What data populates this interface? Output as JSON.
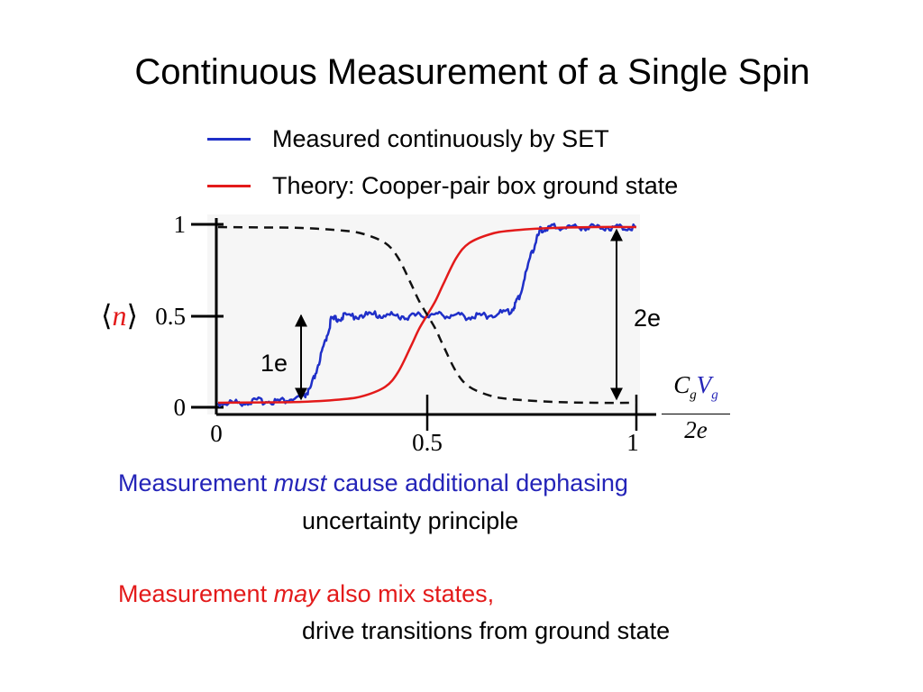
{
  "title": "Continuous Measurement of a Single Spin",
  "colors": {
    "blue": "#1f2fc8",
    "red": "#e31a1a",
    "dashed": "#111111",
    "plot_bg": "#f6f6f6",
    "text_blue": "#2424b8",
    "text_red": "#e31a1a"
  },
  "chart_data": {
    "type": "line",
    "title": "",
    "xlabel_num": "C",
    "xlabel_num_sub": "g",
    "xlabel_num2": "V",
    "xlabel_num2_sub": "g",
    "xlabel_den": "2e",
    "ylabel_left": "⟨",
    "ylabel_var": "n",
    "ylabel_right": "⟩",
    "xlim": [
      0,
      1
    ],
    "ylim": [
      0,
      1
    ],
    "xticks": [
      {
        "value": 0,
        "label": "0"
      },
      {
        "value": 0.5,
        "label": "0.5"
      },
      {
        "value": 1,
        "label": "1"
      }
    ],
    "yticks": [
      {
        "value": 0,
        "label": "0"
      },
      {
        "value": 0.5,
        "label": "0.5"
      },
      {
        "value": 1,
        "label": "1"
      }
    ],
    "grid": false,
    "legend_position": "top",
    "series": [
      {
        "name": "Measured continuously by SET",
        "color": "#1f2fc8",
        "style": "solid-noisy",
        "x": [
          0,
          0.05,
          0.1,
          0.15,
          0.2,
          0.22,
          0.25,
          0.27,
          0.3,
          0.35,
          0.4,
          0.45,
          0.5,
          0.55,
          0.6,
          0.65,
          0.7,
          0.72,
          0.75,
          0.77,
          0.8,
          0.85,
          0.9,
          0.95,
          1
        ],
        "y": [
          0.01,
          0.01,
          0.02,
          0.02,
          0.04,
          0.08,
          0.3,
          0.47,
          0.49,
          0.5,
          0.5,
          0.49,
          0.5,
          0.5,
          0.49,
          0.5,
          0.52,
          0.6,
          0.85,
          0.97,
          0.99,
          0.99,
          0.99,
          0.99,
          0.99
        ]
      },
      {
        "name": "Theory: Cooper-pair box ground state",
        "color": "#e31a1a",
        "style": "solid",
        "x": [
          0,
          0.1,
          0.2,
          0.3,
          0.35,
          0.4,
          0.43,
          0.46,
          0.48,
          0.5,
          0.52,
          0.54,
          0.57,
          0.6,
          0.65,
          0.7,
          0.8,
          0.9,
          1
        ],
        "y": [
          0.01,
          0.012,
          0.015,
          0.03,
          0.05,
          0.1,
          0.18,
          0.32,
          0.42,
          0.5,
          0.58,
          0.68,
          0.82,
          0.9,
          0.95,
          0.97,
          0.985,
          0.99,
          0.99
        ]
      },
      {
        "name": "",
        "color": "#111111",
        "style": "dashed",
        "x": [
          0,
          0.1,
          0.2,
          0.3,
          0.35,
          0.4,
          0.43,
          0.46,
          0.48,
          0.5,
          0.52,
          0.54,
          0.57,
          0.6,
          0.65,
          0.7,
          0.8,
          0.9,
          1
        ],
        "y": [
          0.99,
          0.988,
          0.985,
          0.97,
          0.95,
          0.9,
          0.82,
          0.68,
          0.58,
          0.5,
          0.42,
          0.32,
          0.18,
          0.1,
          0.05,
          0.03,
          0.015,
          0.01,
          0.01
        ]
      }
    ],
    "annotations": [
      {
        "text": "1e",
        "x": 0.19,
        "y_from": 0.05,
        "y_to": 0.5
      },
      {
        "text": "2e",
        "x": 0.94,
        "y_from": 0.05,
        "y_to": 0.98
      }
    ]
  },
  "statements": {
    "line1_prefix": "Measurement ",
    "line1_em": "must",
    "line1_suffix": " cause additional dephasing",
    "line2": "uncertainty principle",
    "line3_prefix": "Measurement ",
    "line3_em": "may",
    "line3_suffix": " also mix states,",
    "line4": "drive transitions from ground state"
  }
}
